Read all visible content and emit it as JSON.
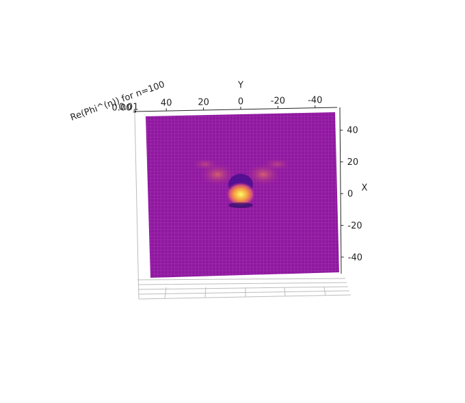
{
  "chart_data": {
    "type": "surface",
    "title": "Re(Phi^(n)) for n=100",
    "xlabel": "X",
    "ylabel": "Y",
    "xlim": [
      -50,
      50
    ],
    "xticks": [
      40,
      20,
      0,
      -20,
      -40
    ],
    "ylim": [
      -50,
      50
    ],
    "yticks": [
      40,
      20,
      0,
      -20,
      -40
    ],
    "zticks": [
      {
        "value": 0,
        "label": "0.00"
      },
      {
        "value": 0.01,
        "label": "0.01"
      }
    ],
    "colormap": "plasma",
    "color": "#9018a0"
  }
}
